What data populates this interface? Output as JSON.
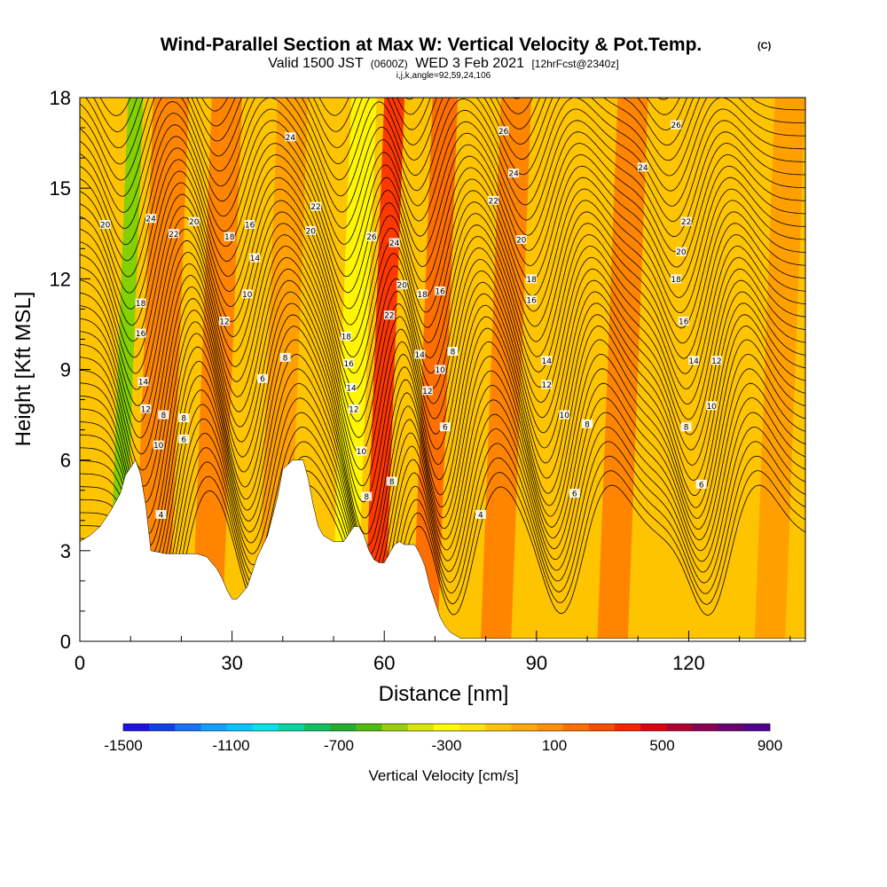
{
  "header": {
    "title": "Wind-Parallel Section at Max W: Vertical Velocity & Pot.Temp.",
    "copyright": "(C)",
    "valid_prefix": "Valid 1500 JST",
    "utc": "(0600Z)",
    "date": "WED 3 Feb 2021",
    "forecast": "[12hrFcst@2340z]",
    "indices": "i,j,k,angle=92,59,24,106"
  },
  "colors": {
    "bg_field": "#ffc400",
    "orange": "#ff9a00",
    "dark_orange": "#ff7a00",
    "red": "#ff2000",
    "yellow": "#ffff00",
    "green": "#6fd200",
    "terrain": "#ffffff",
    "contour": "#000000"
  },
  "chart_data": {
    "type": "heatmap",
    "xlabel": "Distance [nm]",
    "ylabel": "Height [Kft MSL]",
    "xlim": [
      0,
      143
    ],
    "ylim": [
      0,
      18
    ],
    "x_ticks": [
      "0",
      "30",
      "60",
      "90",
      "120"
    ],
    "y_ticks": [
      "0",
      "3",
      "6",
      "9",
      "12",
      "15",
      "18"
    ],
    "terrain_profile": {
      "x": [
        0,
        2,
        4,
        6,
        8,
        9,
        11,
        12,
        13,
        14,
        17,
        20,
        23,
        25,
        27,
        28,
        29,
        30,
        31,
        33,
        35,
        37,
        39,
        40,
        42,
        44,
        45,
        46,
        47,
        48,
        50,
        52,
        54,
        55,
        56,
        57,
        58,
        59,
        60,
        61,
        62,
        63,
        64,
        66,
        67,
        68,
        69,
        70,
        71,
        72,
        73,
        74,
        75,
        76,
        78,
        143
      ],
      "y": [
        3.3,
        3.5,
        3.8,
        4.3,
        4.9,
        5.5,
        6.0,
        5.5,
        4.5,
        3.0,
        2.9,
        2.9,
        2.9,
        2.8,
        2.4,
        2.1,
        1.7,
        1.4,
        1.4,
        1.8,
        2.8,
        3.5,
        4.8,
        5.7,
        6.0,
        6.0,
        5.4,
        4.5,
        3.8,
        3.5,
        3.3,
        3.3,
        3.8,
        3.8,
        3.5,
        3.0,
        2.7,
        2.6,
        2.6,
        2.9,
        3.2,
        3.3,
        3.2,
        3.2,
        2.9,
        2.5,
        1.8,
        1.3,
        0.8,
        0.5,
        0.3,
        0.2,
        0.1,
        0.1,
        0.1,
        0.1
      ]
    },
    "vertical_velocity_bands": [
      {
        "x_center": 11,
        "width": 3,
        "value": -400,
        "color": "#6fd200"
      },
      {
        "x_center": 18,
        "width": 7,
        "value": 250,
        "color": "#ff7a00"
      },
      {
        "x_center": 29,
        "width": 6,
        "value": 250,
        "color": "#ff7a00"
      },
      {
        "x_center": 42,
        "width": 6,
        "value": 150,
        "color": "#ff9a00"
      },
      {
        "x_center": 56,
        "width": 5,
        "value": -300,
        "color": "#ffff00"
      },
      {
        "x_center": 62,
        "width": 4,
        "value": 550,
        "color": "#ff2000"
      },
      {
        "x_center": 72,
        "width": 5,
        "value": 300,
        "color": "#ff6000"
      },
      {
        "x_center": 86,
        "width": 6,
        "value": 200,
        "color": "#ff7a00"
      },
      {
        "x_center": 109,
        "width": 6,
        "value": 200,
        "color": "#ff7a00"
      },
      {
        "x_center": 140,
        "width": 6,
        "value": 150,
        "color": "#ff9a00"
      }
    ],
    "theta_contour_labels": [
      {
        "x": 5,
        "y": 13.8,
        "text": "20"
      },
      {
        "x": 14,
        "y": 14.0,
        "text": "24"
      },
      {
        "x": 18.5,
        "y": 13.5,
        "text": "22"
      },
      {
        "x": 22.5,
        "y": 13.9,
        "text": "20"
      },
      {
        "x": 29.5,
        "y": 13.4,
        "text": "18"
      },
      {
        "x": 33.5,
        "y": 13.8,
        "text": "16"
      },
      {
        "x": 34.5,
        "y": 12.7,
        "text": "14"
      },
      {
        "x": 33,
        "y": 11.5,
        "text": "10"
      },
      {
        "x": 28.5,
        "y": 10.6,
        "text": "12"
      },
      {
        "x": 40.5,
        "y": 9.4,
        "text": "8"
      },
      {
        "x": 36,
        "y": 8.7,
        "text": "6"
      },
      {
        "x": 41.5,
        "y": 16.7,
        "text": "24"
      },
      {
        "x": 46.5,
        "y": 14.4,
        "text": "22"
      },
      {
        "x": 45.5,
        "y": 13.6,
        "text": "20"
      },
      {
        "x": 52.5,
        "y": 10.1,
        "text": "18"
      },
      {
        "x": 53,
        "y": 9.2,
        "text": "16"
      },
      {
        "x": 53.5,
        "y": 8.4,
        "text": "14"
      },
      {
        "x": 54,
        "y": 7.7,
        "text": "12"
      },
      {
        "x": 55.5,
        "y": 6.3,
        "text": "10"
      },
      {
        "x": 56.5,
        "y": 4.8,
        "text": "8"
      },
      {
        "x": 57.5,
        "y": 13.4,
        "text": "26"
      },
      {
        "x": 62,
        "y": 13.2,
        "text": "24"
      },
      {
        "x": 63.5,
        "y": 11.8,
        "text": "20"
      },
      {
        "x": 61,
        "y": 10.8,
        "text": "22"
      },
      {
        "x": 61.5,
        "y": 5.3,
        "text": "8"
      },
      {
        "x": 67.5,
        "y": 11.5,
        "text": "18"
      },
      {
        "x": 71,
        "y": 11.6,
        "text": "16"
      },
      {
        "x": 67,
        "y": 9.5,
        "text": "14"
      },
      {
        "x": 71,
        "y": 9.0,
        "text": "10"
      },
      {
        "x": 73.5,
        "y": 9.6,
        "text": "8"
      },
      {
        "x": 68.5,
        "y": 8.3,
        "text": "12"
      },
      {
        "x": 72,
        "y": 7.1,
        "text": "6"
      },
      {
        "x": 79,
        "y": 4.2,
        "text": "4"
      },
      {
        "x": 83.5,
        "y": 16.9,
        "text": "26"
      },
      {
        "x": 85.5,
        "y": 15.5,
        "text": "24"
      },
      {
        "x": 81.5,
        "y": 14.6,
        "text": "22"
      },
      {
        "x": 87,
        "y": 13.3,
        "text": "20"
      },
      {
        "x": 89,
        "y": 12.0,
        "text": "18"
      },
      {
        "x": 89,
        "y": 11.3,
        "text": "16"
      },
      {
        "x": 92,
        "y": 9.3,
        "text": "14"
      },
      {
        "x": 92,
        "y": 8.5,
        "text": "12"
      },
      {
        "x": 95.5,
        "y": 7.5,
        "text": "10"
      },
      {
        "x": 100,
        "y": 7.2,
        "text": "8"
      },
      {
        "x": 97.5,
        "y": 4.9,
        "text": "6"
      },
      {
        "x": 117.5,
        "y": 17.1,
        "text": "26"
      },
      {
        "x": 111,
        "y": 15.7,
        "text": "24"
      },
      {
        "x": 119.5,
        "y": 13.9,
        "text": "22"
      },
      {
        "x": 118.5,
        "y": 12.9,
        "text": "20"
      },
      {
        "x": 117.5,
        "y": 12.0,
        "text": "18"
      },
      {
        "x": 119,
        "y": 10.6,
        "text": "16"
      },
      {
        "x": 121,
        "y": 9.3,
        "text": "14"
      },
      {
        "x": 125.5,
        "y": 9.3,
        "text": "12"
      },
      {
        "x": 124.5,
        "y": 7.8,
        "text": "10"
      },
      {
        "x": 119.5,
        "y": 7.1,
        "text": "8"
      },
      {
        "x": 122.5,
        "y": 5.2,
        "text": "6"
      },
      {
        "x": 16.5,
        "y": 7.5,
        "text": "8"
      },
      {
        "x": 15.5,
        "y": 6.5,
        "text": "10"
      },
      {
        "x": 20.5,
        "y": 7.4,
        "text": "8"
      },
      {
        "x": 20.5,
        "y": 6.7,
        "text": "6"
      },
      {
        "x": 16,
        "y": 4.2,
        "text": "4"
      },
      {
        "x": 12,
        "y": 11.2,
        "text": "18"
      },
      {
        "x": 12,
        "y": 10.2,
        "text": "16"
      },
      {
        "x": 12.5,
        "y": 8.6,
        "text": "14"
      },
      {
        "x": 13,
        "y": 7.7,
        "text": "12"
      }
    ]
  },
  "colorbar": {
    "title": "Vertical Velocity [cm/s]",
    "labels": [
      "-1500",
      "-1100",
      "-700",
      "-300",
      "100",
      "500",
      "900"
    ],
    "colors": [
      "#1e10e6",
      "#1240f0",
      "#1a70ff",
      "#10a0ff",
      "#00c8ff",
      "#00e6e6",
      "#00d8a0",
      "#10c060",
      "#20b030",
      "#50bc10",
      "#9ad000",
      "#d8e800",
      "#ffff00",
      "#ffe600",
      "#ffc400",
      "#ffaa00",
      "#ff9000",
      "#ff7000",
      "#ff4c00",
      "#ff2000",
      "#e00010",
      "#b00030",
      "#8a0050",
      "#6a0070",
      "#500090"
    ]
  }
}
